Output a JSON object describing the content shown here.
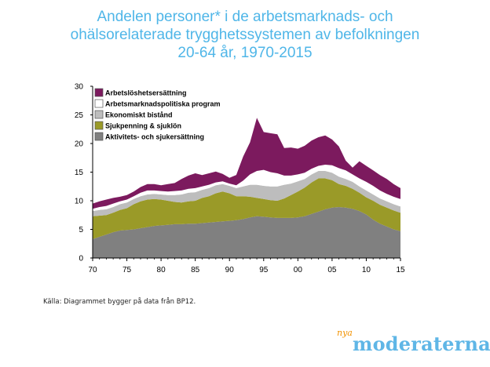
{
  "page": {
    "title_lines": [
      "Andelen personer* i de arbetsmarknads- och",
      "ohälsorelaterade trygghetssystemen av befolkningen",
      "20-64 år, 1970-2015"
    ],
    "source": "Källa: Diagrammet bygger på data från BP12.",
    "logo_small": "nya",
    "logo_main": "moderaterna"
  },
  "chart_data": {
    "type": "area",
    "stacked": true,
    "x": [
      1970,
      1971,
      1972,
      1973,
      1974,
      1975,
      1976,
      1977,
      1978,
      1979,
      1980,
      1981,
      1982,
      1983,
      1984,
      1985,
      1986,
      1987,
      1988,
      1989,
      1990,
      1991,
      1992,
      1993,
      1994,
      1995,
      1996,
      1997,
      1998,
      1999,
      2000,
      2001,
      2002,
      2003,
      2004,
      2005,
      2006,
      2007,
      2008,
      2009,
      2010,
      2011,
      2012,
      2013,
      2014,
      2015
    ],
    "xticks": [
      1970,
      1975,
      1980,
      1985,
      1990,
      1995,
      2000,
      2005,
      2010,
      2015
    ],
    "xtick_labels": [
      "70",
      "75",
      "80",
      "85",
      "90",
      "95",
      "00",
      "05",
      "10",
      "15"
    ],
    "xlim": [
      1970,
      2015
    ],
    "ylim": [
      0,
      30
    ],
    "yticks": [
      0,
      5,
      10,
      15,
      20,
      25,
      30
    ],
    "grid": false,
    "legend_position": "top-left",
    "series": [
      {
        "name": "Aktivitets- och sjukersättning",
        "color": "#808080",
        "values": [
          3.3,
          3.7,
          4.1,
          4.5,
          4.8,
          4.9,
          5.0,
          5.2,
          5.4,
          5.6,
          5.7,
          5.8,
          5.9,
          5.9,
          6.0,
          6.0,
          6.1,
          6.2,
          6.3,
          6.4,
          6.5,
          6.6,
          6.8,
          7.1,
          7.3,
          7.2,
          7.1,
          7.0,
          7.0,
          7.0,
          7.1,
          7.3,
          7.7,
          8.1,
          8.5,
          8.8,
          8.9,
          8.8,
          8.6,
          8.2,
          7.6,
          6.7,
          6.0,
          5.5,
          5.0,
          4.7
        ]
      },
      {
        "name": "Sjukpenning & sjuklön",
        "color": "#9a9a28",
        "values": [
          4.0,
          3.7,
          3.4,
          3.4,
          3.6,
          3.8,
          4.4,
          4.7,
          4.8,
          4.7,
          4.5,
          4.2,
          3.9,
          3.8,
          3.9,
          4.0,
          4.4,
          4.6,
          5.0,
          5.2,
          4.8,
          4.2,
          4.0,
          3.6,
          3.2,
          3.1,
          3.0,
          3.0,
          3.4,
          4.0,
          4.5,
          5.0,
          5.5,
          5.8,
          5.4,
          4.8,
          4.0,
          3.8,
          3.5,
          3.2,
          3.0,
          3.3,
          3.3,
          3.3,
          3.3,
          3.2
        ]
      },
      {
        "name": "Ekonomiskt bistånd",
        "color": "#bdbdbd",
        "values": [
          0.9,
          1.0,
          1.0,
          1.0,
          1.0,
          1.0,
          0.9,
          0.9,
          0.9,
          0.9,
          0.9,
          1.0,
          1.2,
          1.4,
          1.5,
          1.5,
          1.4,
          1.4,
          1.4,
          1.3,
          1.3,
          1.4,
          1.7,
          2.1,
          2.3,
          2.3,
          2.4,
          2.5,
          2.4,
          2.0,
          1.8,
          1.5,
          1.4,
          1.3,
          1.3,
          1.3,
          1.3,
          1.2,
          1.2,
          1.1,
          1.2,
          1.1,
          1.1,
          1.1,
          1.1,
          1.1
        ]
      },
      {
        "name": "Arbetsmarknadspolitiska program",
        "color": "#ffffff",
        "values": [
          0.4,
          0.5,
          0.6,
          0.6,
          0.5,
          0.5,
          0.5,
          0.6,
          0.7,
          0.6,
          0.6,
          0.6,
          0.7,
          0.7,
          0.7,
          0.7,
          0.6,
          0.6,
          0.5,
          0.5,
          0.4,
          0.5,
          1.0,
          1.8,
          2.4,
          2.8,
          2.5,
          2.3,
          1.6,
          1.4,
          1.2,
          1.1,
          1.0,
          0.9,
          1.1,
          1.3,
          1.5,
          1.5,
          1.3,
          1.4,
          1.5,
          1.5,
          1.4,
          1.3,
          1.3,
          1.3
        ]
      },
      {
        "name": "Arbetslöshetsersättning",
        "color": "#7c1a5e",
        "values": [
          0.9,
          1.0,
          1.1,
          1.0,
          0.8,
          0.8,
          0.8,
          1.0,
          1.1,
          1.1,
          1.0,
          1.3,
          1.4,
          2.0,
          2.3,
          2.6,
          2.0,
          2.0,
          1.9,
          1.3,
          1.0,
          1.8,
          4.2,
          5.6,
          9.3,
          6.6,
          6.8,
          6.8,
          4.8,
          4.9,
          4.5,
          4.7,
          4.9,
          5.0,
          5.1,
          4.5,
          3.8,
          1.7,
          1.2,
          3.0,
          2.8,
          2.7,
          2.7,
          2.6,
          2.2,
          1.9
        ]
      }
    ]
  }
}
